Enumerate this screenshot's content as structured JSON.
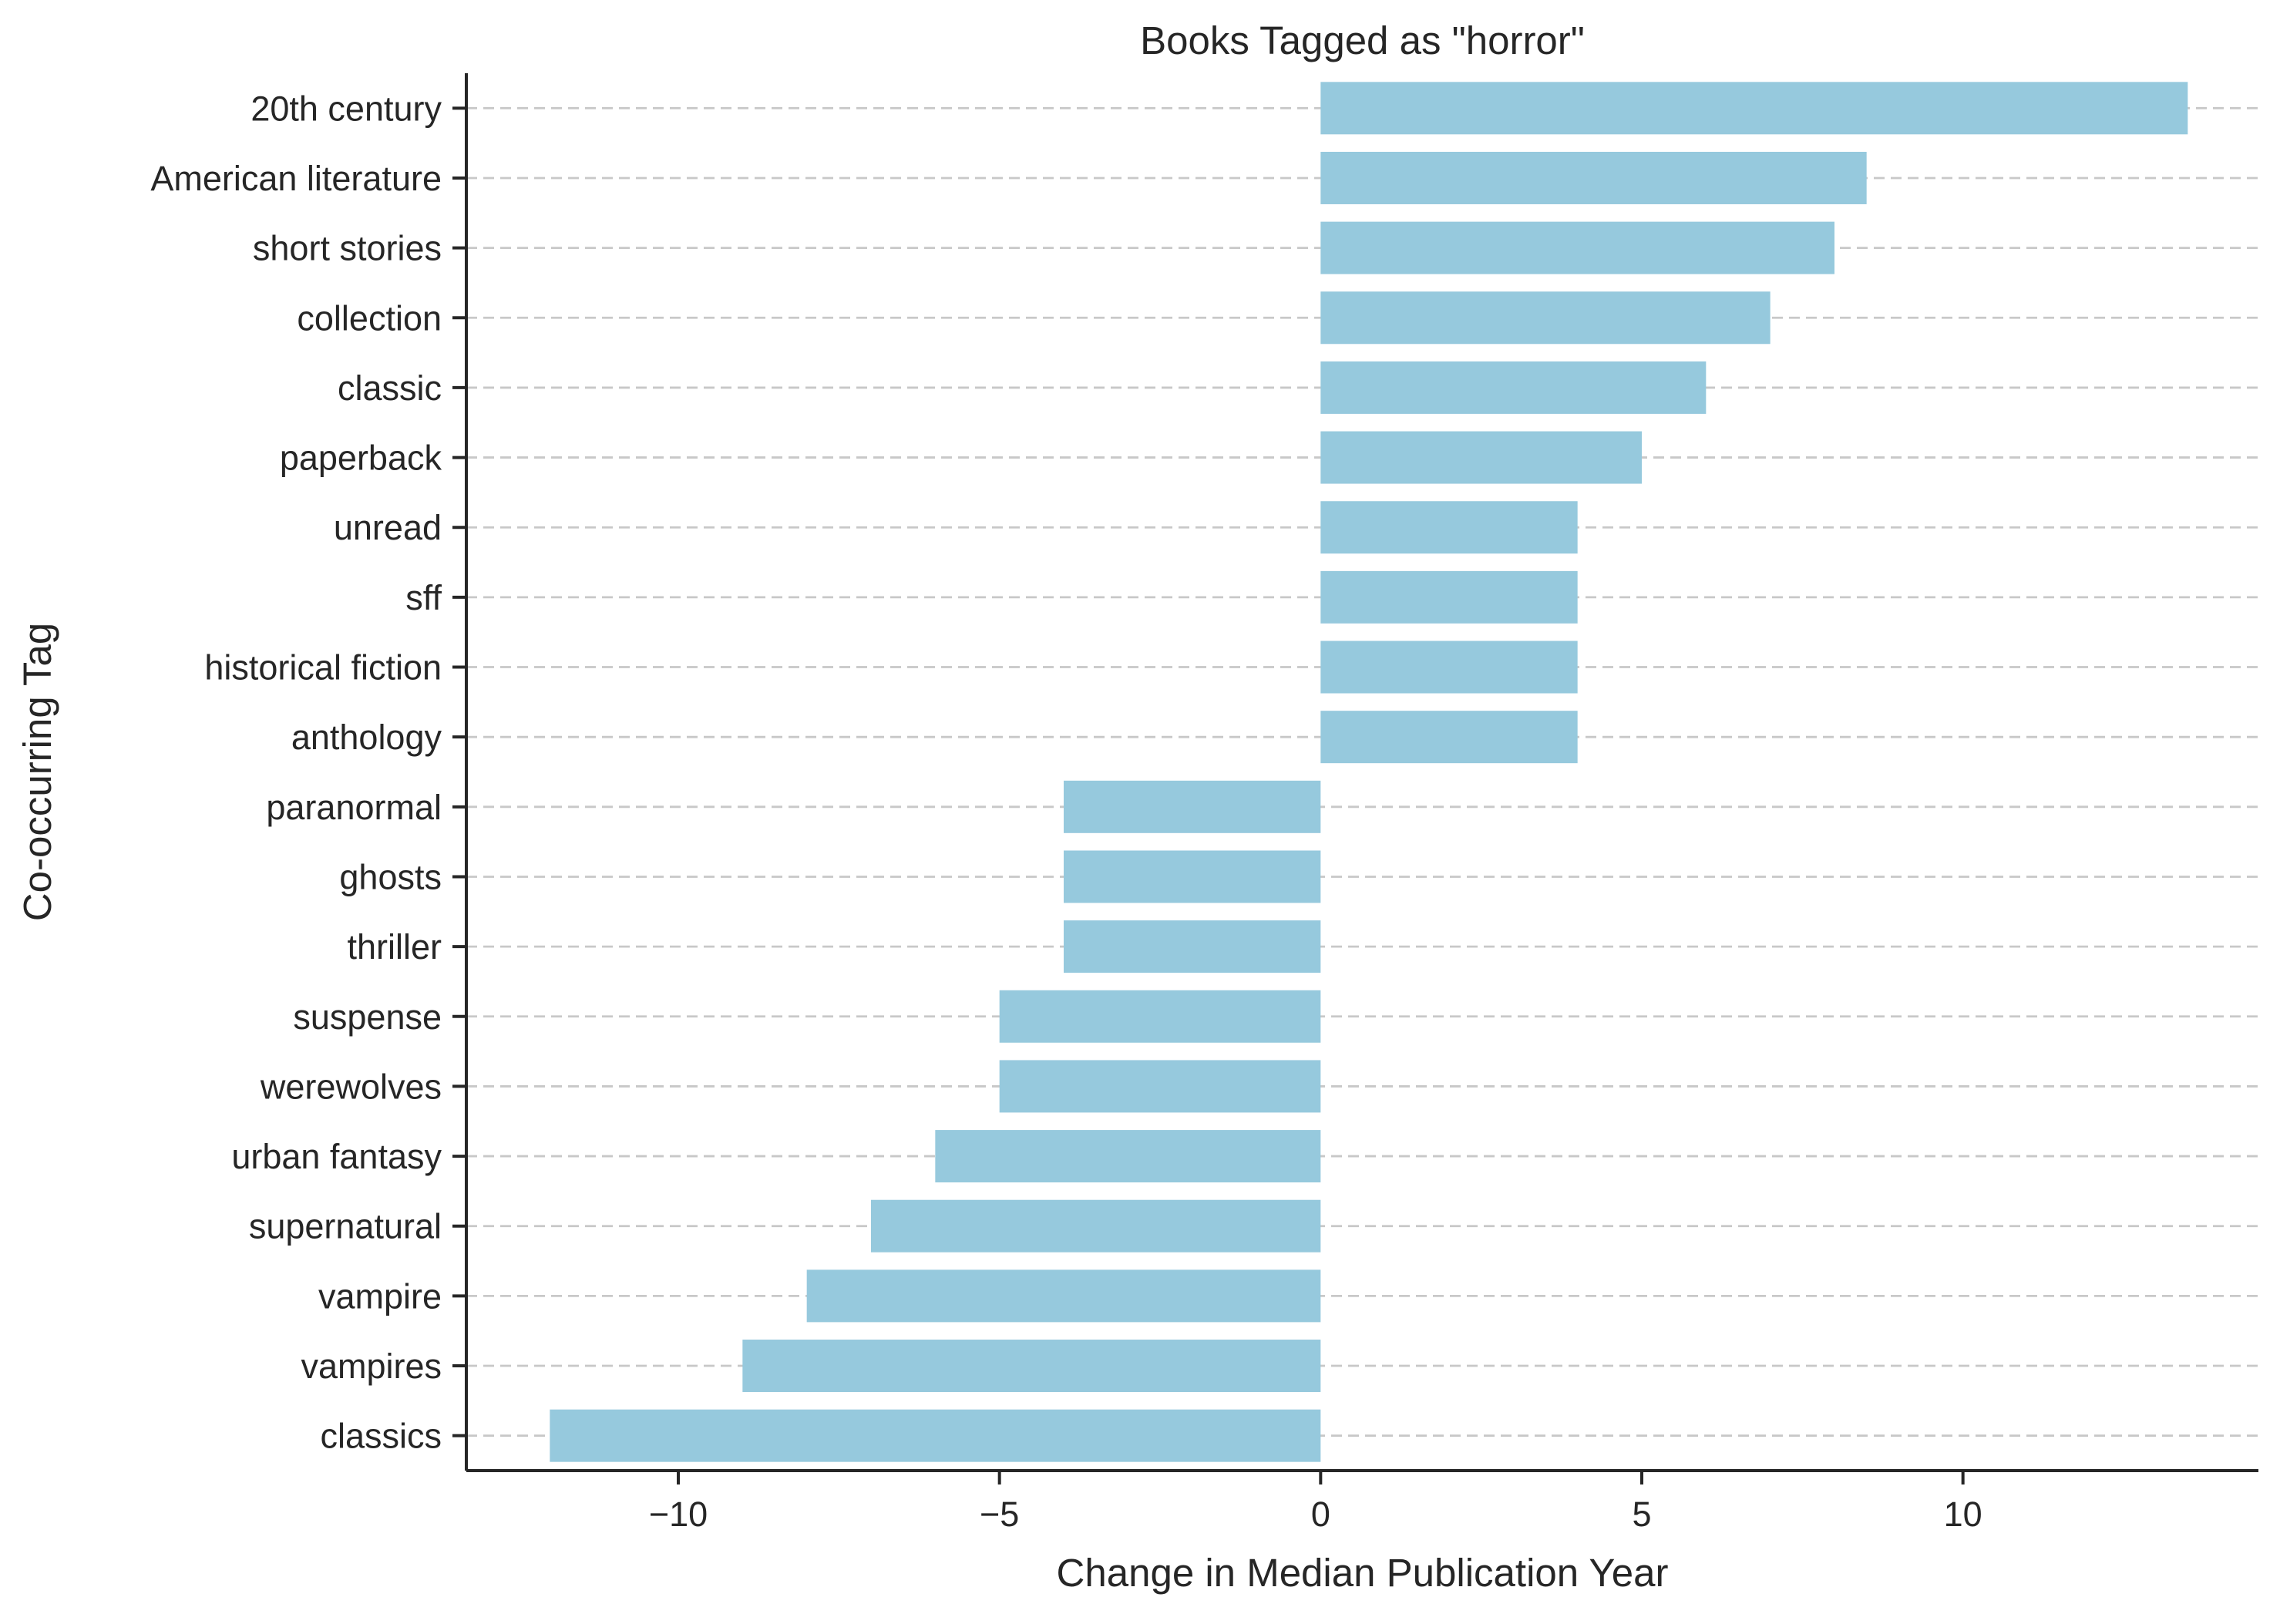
{
  "chart_data": {
    "type": "bar",
    "orientation": "horizontal",
    "title": "Books Tagged as \"horror\"",
    "xlabel": "Change in Median Publication Year",
    "ylabel": "Co-occurring Tag",
    "xlim": [
      -13.3,
      14.6
    ],
    "x_ticks": [
      -10,
      -5,
      0,
      5,
      10
    ],
    "x_tick_labels": [
      "−10",
      "−5",
      "0",
      "5",
      "10"
    ],
    "grid": "horizontal dashed",
    "bar_color": "#96c9dd",
    "categories": [
      "20th century",
      "American literature",
      "short stories",
      "collection",
      "classic",
      "paperback",
      "unread",
      "sff",
      "historical fiction",
      "anthology",
      "paranormal",
      "ghosts",
      "thriller",
      "suspense",
      "werewolves",
      "urban fantasy",
      "supernatural",
      "vampire",
      "vampires",
      "classics"
    ],
    "values": [
      13.5,
      8.5,
      8,
      7,
      6,
      5,
      4,
      4,
      4,
      4,
      -4,
      -4,
      -4,
      -5,
      -5,
      -6,
      -7,
      -8,
      -9,
      -12
    ]
  }
}
